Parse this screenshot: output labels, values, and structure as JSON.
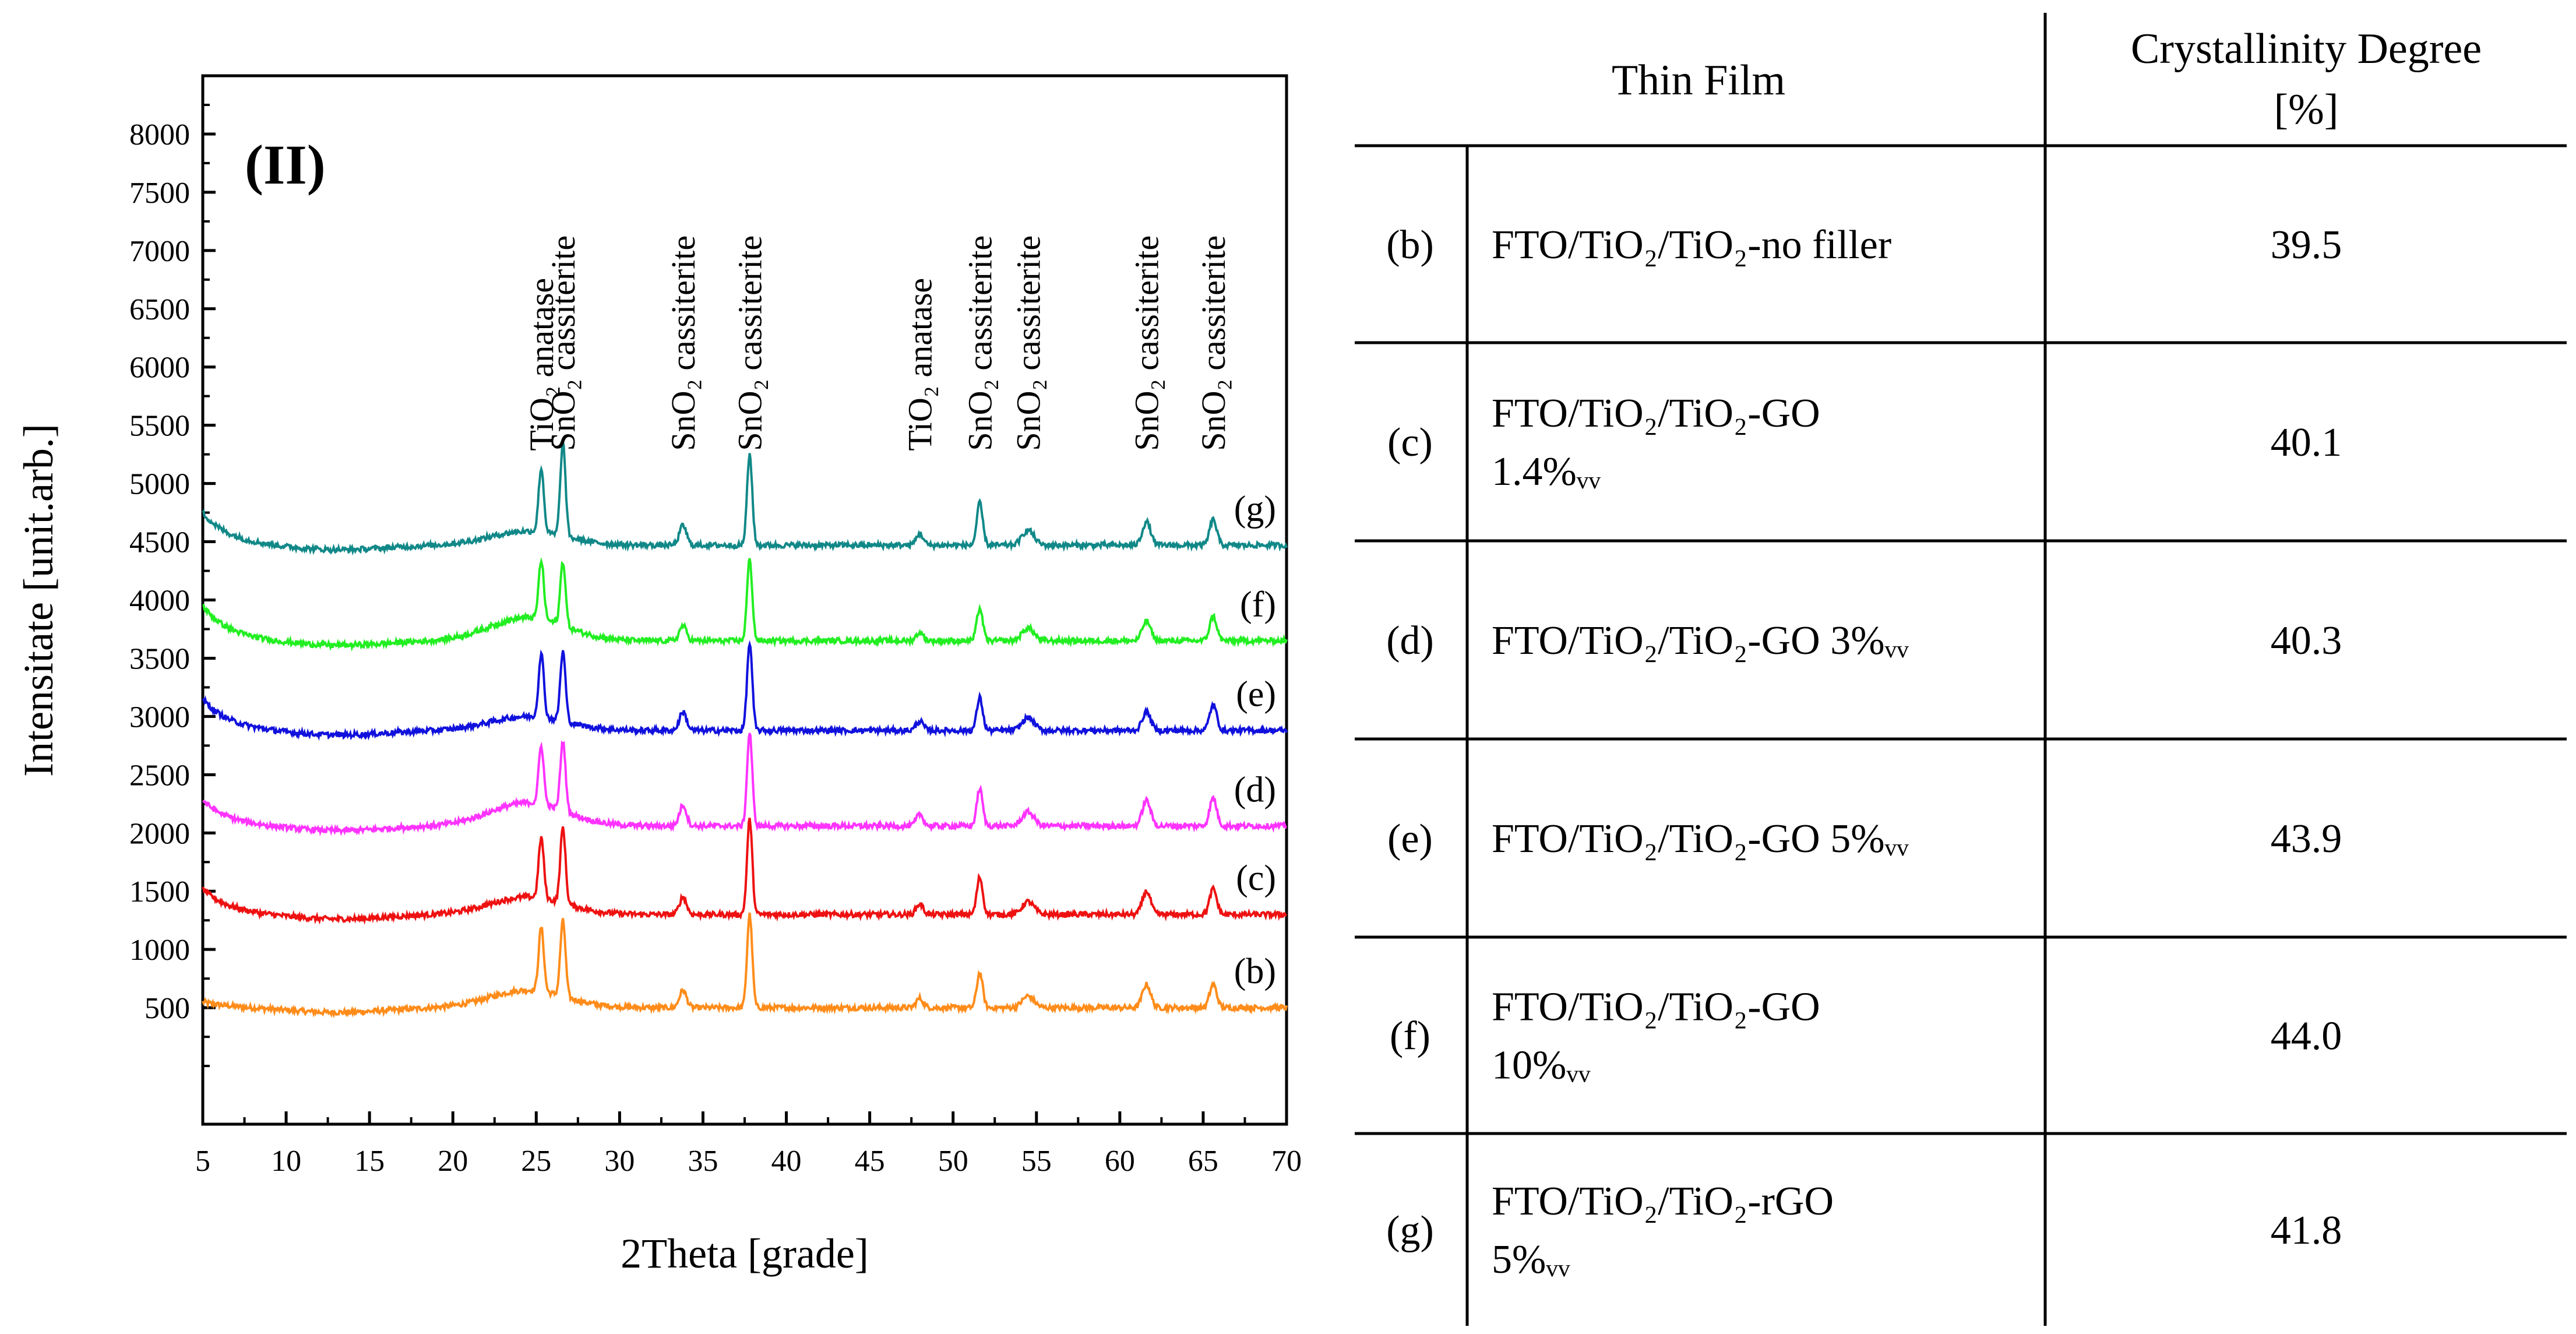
{
  "figure": {
    "panel_label": "(II)"
  },
  "chart_data": {
    "type": "line",
    "title": "",
    "xlabel": "2Theta [grade]",
    "ylabel": "Intensitate [unit.arb.]",
    "xlim": [
      5,
      70
    ],
    "ylim": [
      -500,
      8500
    ],
    "x_ticks": [
      5,
      10,
      15,
      20,
      25,
      30,
      35,
      40,
      45,
      50,
      55,
      60,
      65,
      70
    ],
    "y_ticks": [
      500,
      1000,
      1500,
      2000,
      2500,
      3000,
      3500,
      4000,
      4500,
      5000,
      5500,
      6000,
      6500,
      7000,
      7500,
      8000
    ],
    "grid": false,
    "peaks": [
      {
        "x": 25.3,
        "width": 0.22
      },
      {
        "x": 26.6,
        "width": 0.22
      },
      {
        "x": 33.8,
        "width": 0.3
      },
      {
        "x": 37.8,
        "width": 0.22
      },
      {
        "x": 48.0,
        "width": 0.3
      },
      {
        "x": 51.6,
        "width": 0.25
      },
      {
        "x": 54.5,
        "width": 0.5
      },
      {
        "x": 61.6,
        "width": 0.35
      },
      {
        "x": 65.6,
        "width": 0.3
      }
    ],
    "series": [
      {
        "name": "(b)",
        "color": "#ff8c1a",
        "baseline": 500,
        "start": 550,
        "hump": 150,
        "heights": [
          550,
          650,
          150,
          800,
          80,
          300,
          100,
          200,
          200
        ]
      },
      {
        "name": "(c)",
        "color": "#ee1111",
        "baseline": 1300,
        "start": 1520,
        "hump": 150,
        "heights": [
          520,
          650,
          150,
          820,
          90,
          320,
          110,
          200,
          220
        ]
      },
      {
        "name": "(d)",
        "color": "#ff33ff",
        "baseline": 2060,
        "start": 2280,
        "hump": 200,
        "heights": [
          500,
          600,
          180,
          800,
          100,
          320,
          120,
          220,
          240
        ]
      },
      {
        "name": "(e)",
        "color": "#1111dd",
        "baseline": 2880,
        "start": 3150,
        "hump": 120,
        "heights": [
          550,
          600,
          160,
          750,
          80,
          280,
          110,
          160,
          220
        ]
      },
      {
        "name": "(f)",
        "color": "#22ee22",
        "baseline": 3650,
        "start": 3950,
        "hump": 200,
        "heights": [
          500,
          550,
          130,
          700,
          70,
          280,
          110,
          170,
          210
        ]
      },
      {
        "name": "(g)",
        "color": "#118888",
        "baseline": 4470,
        "start": 4750,
        "hump": 120,
        "heights": [
          550,
          800,
          170,
          780,
          100,
          360,
          130,
          200,
          220
        ]
      }
    ],
    "annotations": [
      {
        "text": "TiO₂ anatase",
        "x": 25.3
      },
      {
        "text": "SnO₂ cassiterite",
        "x": 26.6
      },
      {
        "text": "SnO₂ cassiterite",
        "x": 33.8
      },
      {
        "text": "SnO₂ cassiterite",
        "x": 37.8
      },
      {
        "text": "TiO₂ anatase",
        "x": 48.0
      },
      {
        "text": "SnO₂ cassiterite",
        "x": 51.6
      },
      {
        "text": "SnO₂ cassiterite",
        "x": 54.5
      },
      {
        "text": "SnO₂ cassiterite",
        "x": 61.6
      },
      {
        "text": "SnO₂ cassiterite",
        "x": 65.6
      }
    ]
  },
  "table": {
    "headers": {
      "film": "Thin Film",
      "degree_line1": "Crystallinity Degree",
      "degree_line2": "[%]"
    },
    "rows": [
      {
        "label": "(b)",
        "film_lines": [
          "FTO/TiO₂/TiO₂-no filler"
        ],
        "value": "39.5"
      },
      {
        "label": "(c)",
        "film_lines": [
          "FTO/TiO₂/TiO₂-GO",
          "1.4%ᵥᵥ"
        ],
        "value": "40.1"
      },
      {
        "label": "(d)",
        "film_lines": [
          "FTO/TiO₂/TiO₂-GO 3%ᵥᵥ"
        ],
        "value": "40.3"
      },
      {
        "label": "(e)",
        "film_lines": [
          "FTO/TiO₂/TiO₂-GO 5%ᵥᵥ"
        ],
        "value": "43.9"
      },
      {
        "label": "(f)",
        "film_lines": [
          "FTO/TiO₂/TiO₂-GO",
          "10%ᵥᵥ"
        ],
        "value": "44.0"
      },
      {
        "label": "(g)",
        "film_lines": [
          "FTO/TiO₂/TiO₂-rGO",
          "5%ᵥᵥ"
        ],
        "value": "41.8"
      }
    ]
  }
}
